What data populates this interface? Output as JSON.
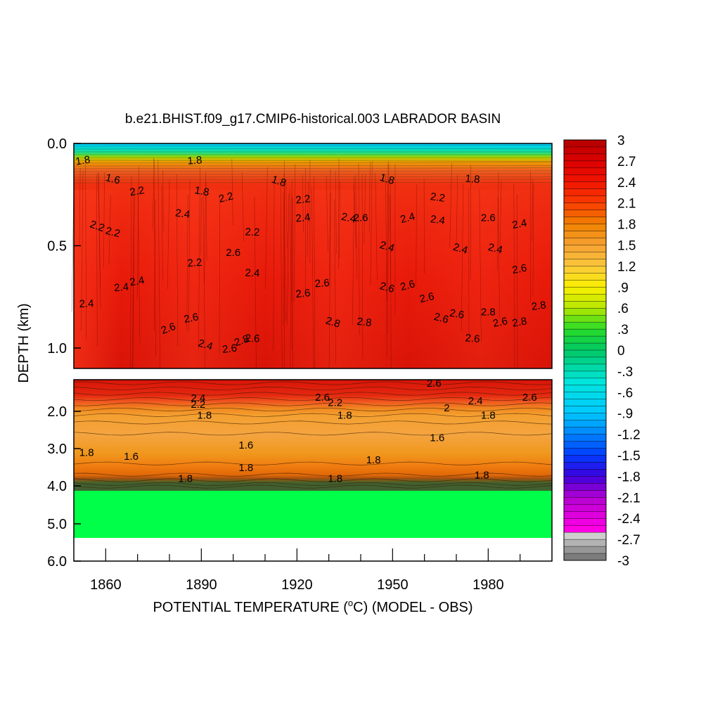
{
  "chart_data": {
    "type": "heatmap",
    "title": "b.e21.BHIST.f09_g17.CMIP6-historical.003 LABRADOR BASIN",
    "xlabel_prefix": "POTENTIAL TEMPERATURE (",
    "xlabel_unit_sup": "o",
    "xlabel_suffix": "C) (MODEL - OBS)",
    "ylabel": "DEPTH (km)",
    "x_range": [
      1850,
      2000
    ],
    "x_ticks": [
      "1860",
      "1890",
      "1920",
      "1950",
      "1980"
    ],
    "y_upper_range_km": [
      0.0,
      1.1
    ],
    "y_upper_ticks": [
      "0.0",
      "0.5",
      "1.0"
    ],
    "y_lower_range_km": [
      1.1,
      6.0
    ],
    "y_lower_ticks": [
      "2.0",
      "3.0",
      "4.0",
      "5.0",
      "6.0"
    ],
    "colorbar_ticks": [
      "3",
      "2.7",
      "2.4",
      "2.1",
      "1.8",
      "1.5",
      "1.2",
      ".9",
      ".6",
      ".3",
      "0",
      "-.3",
      "-.6",
      "-.9",
      "-1.2",
      "-1.5",
      "-1.8",
      "-2.1",
      "-2.4",
      "-2.7",
      "-3"
    ],
    "colorbar_range": [
      -3,
      3
    ],
    "contour_labels_upper": [
      {
        "text": "1.8",
        "x": 1853,
        "depth": 0.1
      },
      {
        "text": "1.6",
        "x": 1862,
        "depth": 0.19
      },
      {
        "text": "2.2",
        "x": 1857,
        "depth": 0.42
      },
      {
        "text": "2.2",
        "x": 1862,
        "depth": 0.45
      },
      {
        "text": "2.4",
        "x": 1865,
        "depth": 0.72
      },
      {
        "text": "2.4",
        "x": 1870,
        "depth": 0.69
      },
      {
        "text": "2.4",
        "x": 1854,
        "depth": 0.8
      },
      {
        "text": "2.2",
        "x": 1870,
        "depth": 0.25
      },
      {
        "text": "2.4",
        "x": 1884,
        "depth": 0.36
      },
      {
        "text": "1.8",
        "x": 1888,
        "depth": 0.1
      },
      {
        "text": "2.2",
        "x": 1888,
        "depth": 0.6
      },
      {
        "text": "2.6",
        "x": 1887,
        "depth": 0.87
      },
      {
        "text": "2.6",
        "x": 1880,
        "depth": 0.92
      },
      {
        "text": "2.4",
        "x": 1891,
        "depth": 1.0
      },
      {
        "text": "1.8",
        "x": 1890,
        "depth": 0.25
      },
      {
        "text": "2.2",
        "x": 1898,
        "depth": 0.28
      },
      {
        "text": "2.6",
        "x": 1900,
        "depth": 0.55
      },
      {
        "text": "2.6",
        "x": 1899,
        "depth": 1.02
      },
      {
        "text": "2.8",
        "x": 1903,
        "depth": 0.98
      },
      {
        "text": "2.2",
        "x": 1906,
        "depth": 0.45
      },
      {
        "text": "2.4",
        "x": 1906,
        "depth": 0.65
      },
      {
        "text": "2.6",
        "x": 1906,
        "depth": 0.97
      },
      {
        "text": "1.8",
        "x": 1914,
        "depth": 0.2
      },
      {
        "text": "2.2",
        "x": 1922,
        "depth": 0.29
      },
      {
        "text": "2.4",
        "x": 1922,
        "depth": 0.38
      },
      {
        "text": "2.6",
        "x": 1928,
        "depth": 0.7
      },
      {
        "text": "2.6",
        "x": 1922,
        "depth": 0.75
      },
      {
        "text": "2.8",
        "x": 1931,
        "depth": 0.89
      },
      {
        "text": "2.4",
        "x": 1936,
        "depth": 0.38
      },
      {
        "text": "2.6",
        "x": 1940,
        "depth": 0.38
      },
      {
        "text": "2.8",
        "x": 1941,
        "depth": 0.89
      },
      {
        "text": "1.8",
        "x": 1948,
        "depth": 0.19
      },
      {
        "text": "2.4",
        "x": 1948,
        "depth": 0.52
      },
      {
        "text": "2.6",
        "x": 1948,
        "depth": 0.72
      },
      {
        "text": "2.6",
        "x": 1955,
        "depth": 0.71
      },
      {
        "text": "2.4",
        "x": 1955,
        "depth": 0.38
      },
      {
        "text": "2.6",
        "x": 1961,
        "depth": 0.77
      },
      {
        "text": "2.2",
        "x": 1964,
        "depth": 0.28
      },
      {
        "text": "2.4",
        "x": 1964,
        "depth": 0.39
      },
      {
        "text": "2.6",
        "x": 1965,
        "depth": 0.87
      },
      {
        "text": "2.6",
        "x": 1970,
        "depth": 0.85
      },
      {
        "text": "2.4",
        "x": 1971,
        "depth": 0.53
      },
      {
        "text": "1.8",
        "x": 1975,
        "depth": 0.19
      },
      {
        "text": "2.6",
        "x": 1975,
        "depth": 0.97
      },
      {
        "text": "2.6",
        "x": 1980,
        "depth": 0.38
      },
      {
        "text": "2.8",
        "x": 1980,
        "depth": 0.84
      },
      {
        "text": "2.4",
        "x": 1982,
        "depth": 0.53
      },
      {
        "text": "2.6",
        "x": 1984,
        "depth": 0.89
      },
      {
        "text": "2.4",
        "x": 1990,
        "depth": 0.41
      },
      {
        "text": "2.6",
        "x": 1990,
        "depth": 0.63
      },
      {
        "text": "2.8",
        "x": 1990,
        "depth": 0.89
      },
      {
        "text": "2.8",
        "x": 1996,
        "depth": 0.81
      }
    ],
    "contour_labels_lower": [
      {
        "text": "2.4",
        "x": 1889,
        "depth": 1.72
      },
      {
        "text": "2.2",
        "x": 1889,
        "depth": 1.9
      },
      {
        "text": "1.8",
        "x": 1891,
        "depth": 2.2
      },
      {
        "text": "1.6",
        "x": 1904,
        "depth": 3.0
      },
      {
        "text": "1.8",
        "x": 1854,
        "depth": 3.2
      },
      {
        "text": "1.6",
        "x": 1868,
        "depth": 3.3
      },
      {
        "text": "1.8",
        "x": 1904,
        "depth": 3.6
      },
      {
        "text": "1.8",
        "x": 1885,
        "depth": 3.9
      },
      {
        "text": "2.6",
        "x": 1928,
        "depth": 1.7
      },
      {
        "text": "2.2",
        "x": 1932,
        "depth": 1.85
      },
      {
        "text": "1.8",
        "x": 1935,
        "depth": 2.2
      },
      {
        "text": "1.8",
        "x": 1944,
        "depth": 3.4
      },
      {
        "text": "1.8",
        "x": 1932,
        "depth": 3.9
      },
      {
        "text": "2.6",
        "x": 1963,
        "depth": 1.3
      },
      {
        "text": "2.4",
        "x": 1976,
        "depth": 1.8
      },
      {
        "text": "2",
        "x": 1967,
        "depth": 2.0
      },
      {
        "text": "1.8",
        "x": 1980,
        "depth": 2.2
      },
      {
        "text": "1.6",
        "x": 1964,
        "depth": 2.8
      },
      {
        "text": "1.8",
        "x": 1978,
        "depth": 3.8
      },
      {
        "text": "2.6",
        "x": 1993,
        "depth": 1.7
      }
    ]
  }
}
